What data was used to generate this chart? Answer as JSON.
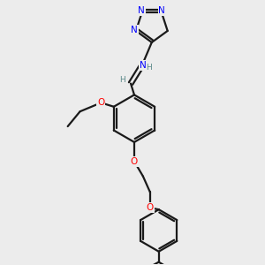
{
  "bg_color": "#ececec",
  "bond_color": "#1a1a1a",
  "N_color": "#0000ff",
  "O_color": "#ff0000",
  "H_color": "#5b8a8a",
  "line_width": 1.6,
  "figsize": [
    3.0,
    3.0
  ],
  "dpi": 100,
  "xlim": [
    0.0,
    3.0
  ],
  "ylim": [
    0.0,
    3.0
  ]
}
